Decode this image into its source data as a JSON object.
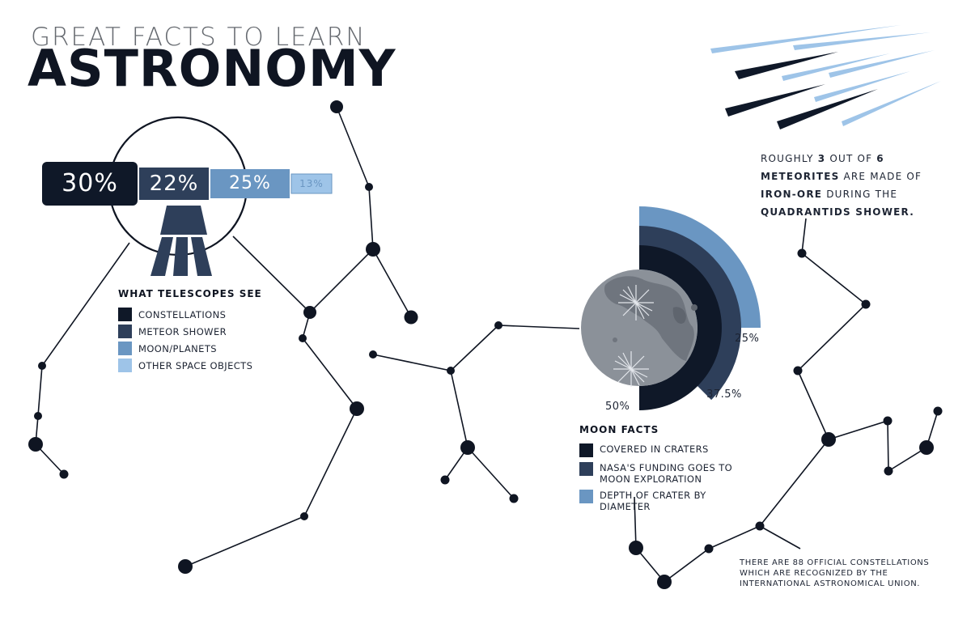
{
  "title": {
    "kicker": "GREAT FACTS TO LEARN",
    "main": "ASTRONOMY"
  },
  "telescope_chart": {
    "title": "WHAT TELESCOPES SEE",
    "segments": [
      {
        "label": "CONSTELLATIONS",
        "value": 30,
        "display": "30%",
        "color": "#0f1828"
      },
      {
        "label": "METEOR SHOWER",
        "value": 22,
        "display": "22%",
        "color": "#2e3f5a"
      },
      {
        "label": "MOON/PLANETS",
        "value": 25,
        "display": "25%",
        "color": "#6a96c2"
      },
      {
        "label": "OTHER SPACE OBJECTS",
        "value": 13,
        "display": "13%",
        "color": "#9ec4e8"
      }
    ]
  },
  "moon_chart": {
    "title": "MOON FACTS",
    "segments": [
      {
        "label": "COVERED IN CRATERS",
        "value": 50,
        "display": "50%",
        "color": "#0f1828"
      },
      {
        "label": "NASA'S FUNDING GOES TO MOON EXPLORATION",
        "value": 37.5,
        "display": "37.5%",
        "color": "#2e3f5a"
      },
      {
        "label": "DEPTH OF CRATER BY DIAMETER",
        "value": 25,
        "display": "25%",
        "color": "#6a96c2"
      }
    ]
  },
  "meteorite_note": {
    "prefix": "ROUGHLY",
    "count": "3",
    "middle": "OUT OF",
    "total": "6",
    "line2_bold": "METEORITES",
    "line2_rest": "ARE MADE OF",
    "line3_bold": "IRON-ORE",
    "line3_rest": "DURING THE",
    "line4_bold": "QUADRANTIDS SHOWER."
  },
  "constellation_note": {
    "line1": "THERE ARE 88 OFFICIAL CONSTELLATIONS",
    "line2": "WHICH ARE RECOGNIZED BY THE",
    "line3": "INTERNATIONAL ASTRONOMICAL UNION."
  },
  "colors": {
    "navy": "#0f1828",
    "slate": "#2e3f5a",
    "steel_blue": "#6a96c2",
    "sky_blue": "#9ec4e8",
    "moon_gray": "#8b9199"
  }
}
